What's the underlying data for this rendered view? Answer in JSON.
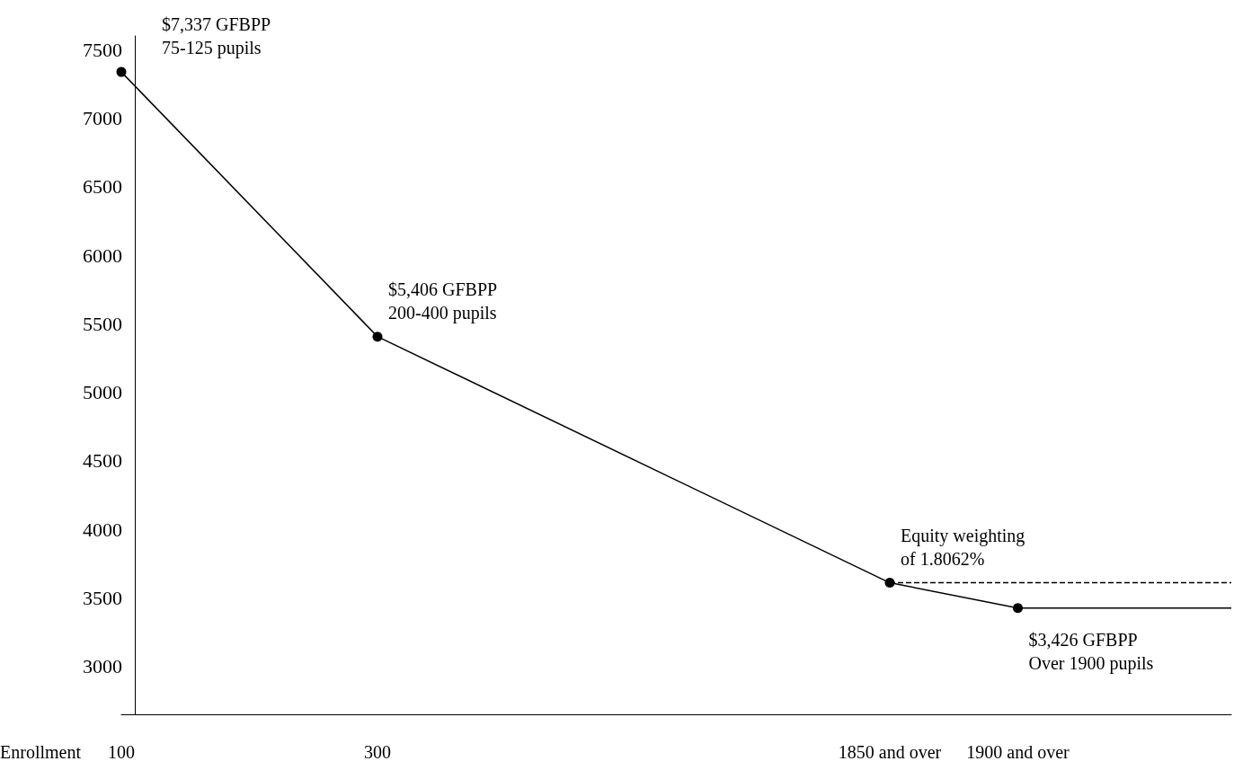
{
  "chart_data": {
    "type": "line",
    "xlabel": "Enrollment",
    "categories": [
      "100",
      null,
      null,
      null,
      null,
      null,
      "300",
      null,
      null,
      null,
      null,
      null,
      null,
      null,
      null,
      null,
      null,
      null,
      "1850 and over",
      null,
      null,
      "1900 and over",
      null,
      null,
      null,
      null,
      null
    ],
    "series": [
      {
        "color": "#000000",
        "marker": "circle",
        "values": [
          7337,
          null,
          null,
          null,
          null,
          null,
          5406,
          null,
          null,
          null,
          null,
          null,
          null,
          null,
          null,
          null,
          null,
          null,
          3610,
          null,
          null,
          3426,
          null,
          null,
          null,
          null,
          null
        ]
      },
      {
        "color": "#000000",
        "marker": "none",
        "values": [
          null,
          null,
          null,
          null,
          null,
          null,
          null,
          null,
          null,
          null,
          null,
          null,
          null,
          null,
          null,
          null,
          null,
          null,
          null,
          null,
          null,
          3426,
          3426,
          3426,
          3426,
          3426,
          3426
        ]
      },
      {
        "color": "#000000",
        "marker": "none",
        "line_style": "dashed",
        "values": [
          null,
          null,
          null,
          null,
          null,
          null,
          null,
          null,
          null,
          null,
          null,
          null,
          null,
          null,
          null,
          null,
          null,
          null,
          3610,
          3610,
          3610,
          3610,
          3610,
          3610,
          3610,
          3610,
          3610
        ]
      }
    ],
    "ylim": [
      2650,
      7600
    ],
    "yticks": [
      3000,
      3500,
      4000,
      4500,
      5000,
      5500,
      6000,
      6500,
      7000,
      7500
    ],
    "grid": false,
    "annotations": [
      {
        "text": "$7,337 GFBPP\n75-125 pupils",
        "x": "100",
        "y": 7337
      },
      {
        "text": "$5,406 GFBPP\n200-400 pupils",
        "x": "300",
        "y": 5406
      },
      {
        "text": "Equity weighting\nof 1.8062%",
        "x": "1850 and over",
        "y": 3610
      },
      {
        "text": "$3,426 GFBPP\nOver 1900 pupils",
        "x": "1900 and over",
        "y": 3426
      }
    ]
  }
}
